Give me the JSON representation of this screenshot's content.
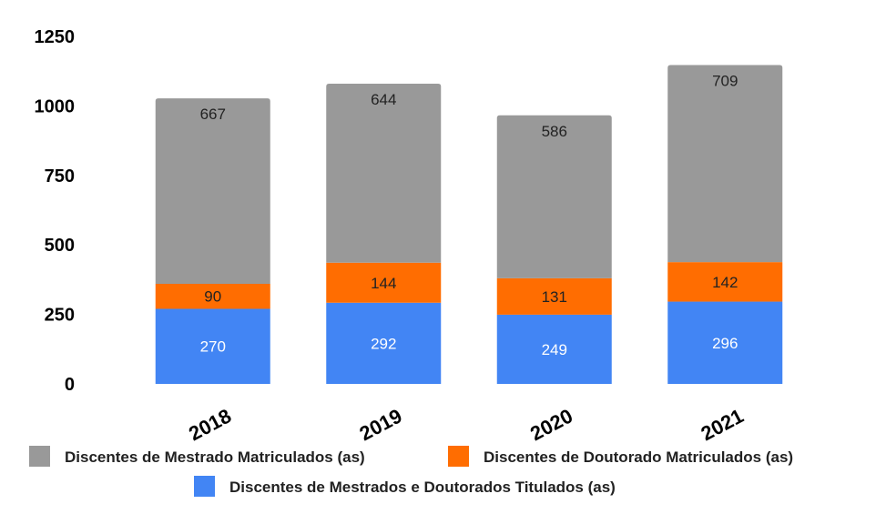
{
  "chart_data": {
    "type": "bar",
    "stacked": true,
    "categories": [
      "2018",
      "2019",
      "2020",
      "2021"
    ],
    "series": [
      {
        "name": "Discentes de Mestrados e Doutorados Titulados (as)",
        "color": "#4285f4",
        "label_color": "#ffffff",
        "values": [
          270,
          292,
          249,
          296
        ]
      },
      {
        "name": "Discentes de Doutorado Matriculados (as)",
        "color": "#ff6d01",
        "label_color": "#222222",
        "values": [
          90,
          144,
          131,
          142
        ]
      },
      {
        "name": "Discentes de Mestrado Matriculados (as)",
        "color": "#999999",
        "label_color": "#222222",
        "values": [
          667,
          644,
          586,
          709
        ]
      }
    ],
    "yticks": [
      0,
      250,
      500,
      750,
      1000,
      1250
    ],
    "ylim": [
      0,
      1250
    ],
    "grid": false,
    "legend_position": "bottom",
    "legend_order": [
      "Discentes de Mestrado Matriculados (as)",
      "Discentes de Doutorado Matriculados (as)",
      "Discentes de Mestrados e Doutorados Titulados (as)"
    ]
  }
}
